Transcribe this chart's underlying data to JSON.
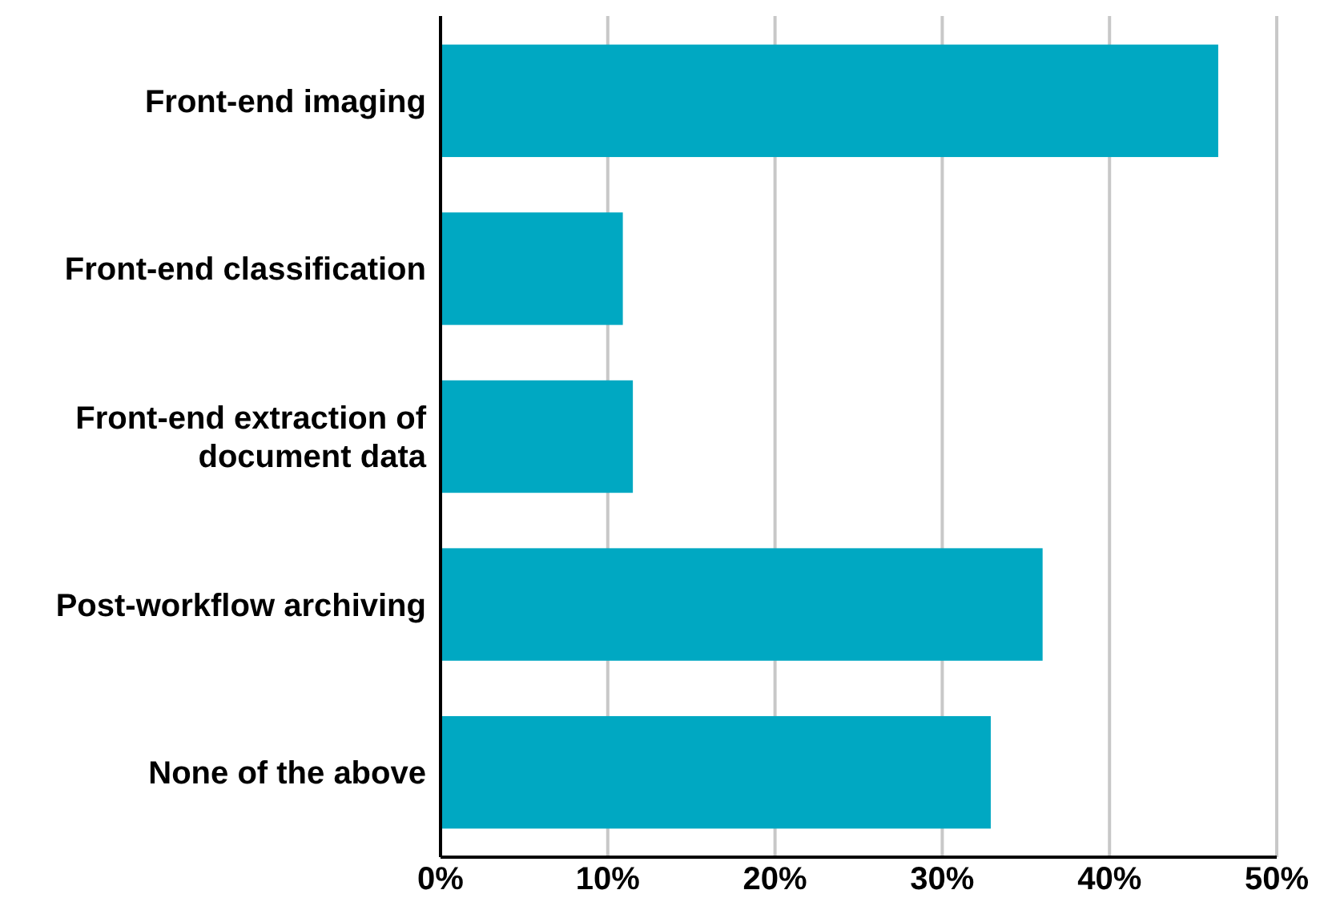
{
  "chart_data": {
    "type": "bar",
    "orientation": "horizontal",
    "categories": [
      "Front-end imaging",
      "Front-end classification",
      "Front-end extraction of document data",
      "Post-workflow archiving",
      "None of the above"
    ],
    "values": [
      46.5,
      10.9,
      11.5,
      36,
      32.9
    ],
    "color": "#00a8c2",
    "xlim": [
      0,
      50
    ],
    "xticks": [
      {
        "value": 0,
        "label": "0%"
      },
      {
        "value": 10,
        "label": "10%"
      },
      {
        "value": 20,
        "label": "20%"
      },
      {
        "value": 30,
        "label": "30%"
      },
      {
        "value": 40,
        "label": "40%"
      },
      {
        "value": 50,
        "label": "50%"
      }
    ],
    "grid": "x"
  }
}
